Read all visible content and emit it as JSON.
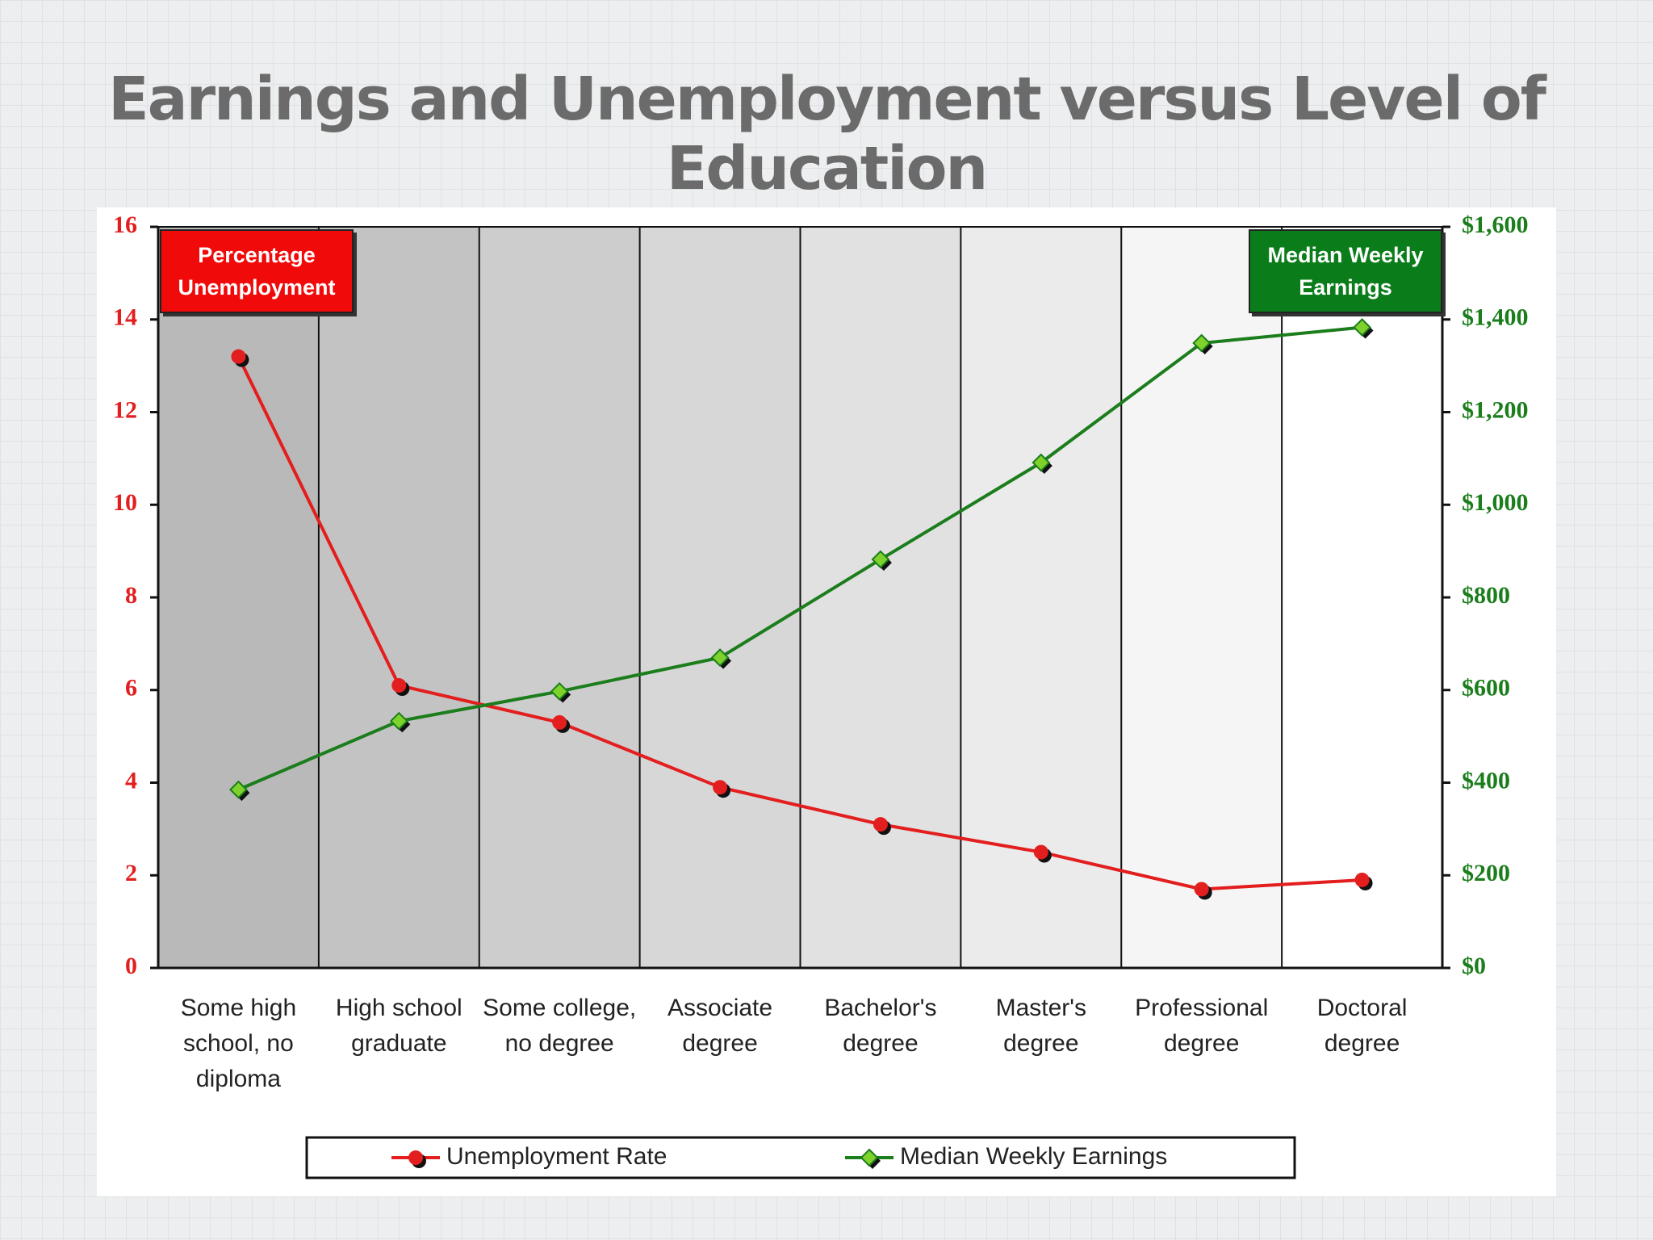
{
  "chart_data": {
    "type": "line",
    "title": "Earnings and Unemployment versus Level of Education",
    "categories": [
      "Some high school, no diploma",
      "High school graduate",
      "Some college, no degree",
      "Associate degree",
      "Bachelor's degree",
      "Master's degree",
      "Professional degree",
      "Doctoral degree"
    ],
    "series": [
      {
        "name": "Unemployment Rate",
        "color": "#e31e1e",
        "values": [
          13.2,
          6.1,
          5.3,
          3.9,
          3.1,
          2.5,
          1.7,
          1.9
        ]
      },
      {
        "name": "Median Weekly Earnings",
        "color": "#1b7d1b",
        "axis": "y2",
        "values": [
          385,
          533,
          597,
          670,
          882,
          1091,
          1349,
          1383
        ]
      }
    ],
    "ylim": [
      0,
      16
    ],
    "yticks": [
      0,
      2,
      4,
      6,
      8,
      10,
      12,
      14,
      16
    ],
    "y2lim": [
      0,
      1600
    ],
    "y2ticks": [
      {
        "value": 0,
        "label": "$0"
      },
      {
        "value": 200,
        "label": "$200"
      },
      {
        "value": 400,
        "label": "$400"
      },
      {
        "value": 600,
        "label": "$600"
      },
      {
        "value": 800,
        "label": "$800"
      },
      {
        "value": 1000,
        "label": "$1,000"
      },
      {
        "value": 1200,
        "label": "$1,200"
      },
      {
        "value": 1400,
        "label": "$1,400"
      },
      {
        "value": 1600,
        "label": "$1,600"
      }
    ],
    "annotations": [
      "Percentage Unemployment",
      "Median Weekly Earnings"
    ]
  }
}
